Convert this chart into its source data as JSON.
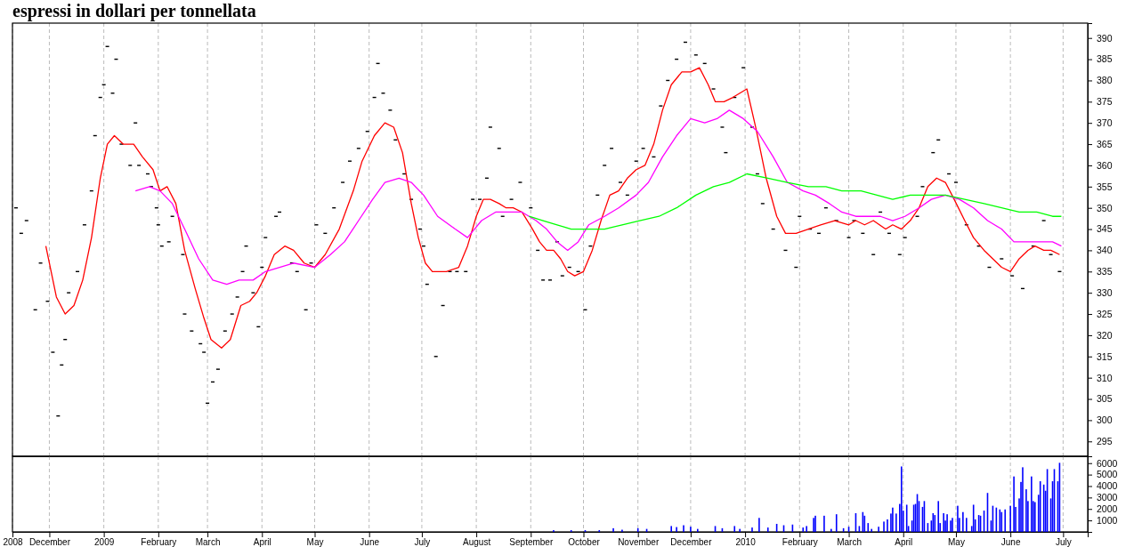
{
  "chart_data": [
    {
      "type": "scatter",
      "title": "espressi in dollari per tonnellata",
      "xlim": [
        "2008-11-10",
        "2010-07-15"
      ],
      "ylim": [
        291.5,
        393.5
      ],
      "xticks": [
        "2008-11-10",
        "2008-12-01",
        "2009-01-01",
        "2009-02-01",
        "2009-03-01",
        "2009-04-01",
        "2009-05-01",
        "2009-06-01",
        "2009-07-01",
        "2009-08-01",
        "2009-09-01",
        "2009-10-01",
        "2009-11-01",
        "2009-12-01",
        "2010-01-01",
        "2010-02-01",
        "2010-03-01",
        "2010-04-01",
        "2010-05-01",
        "2010-06-01",
        "2010-07-01"
      ],
      "yticks": [
        295,
        300,
        305,
        310,
        315,
        320,
        325,
        330,
        335,
        340,
        345,
        350,
        355,
        360,
        365,
        370,
        375,
        380,
        385,
        390
      ],
      "tick_labels": "y",
      "grid": "x",
      "series": [
        {
          "color": "#000000",
          "x": [
            "2008-11-12",
            "2008-11-15",
            "2008-11-18",
            "2008-11-23",
            "2008-11-26",
            "2008-11-30",
            "2008-12-03",
            "2008-12-06",
            "2008-12-08",
            "2008-12-10",
            "2008-12-12",
            "2008-12-17",
            "2008-12-21",
            "2008-12-25",
            "2008-12-27",
            "2008-12-30",
            "2009-01-01",
            "2009-01-03",
            "2009-01-06",
            "2009-01-08",
            "2009-01-11",
            "2009-01-16",
            "2009-01-19",
            "2009-01-21",
            "2009-01-26",
            "2009-01-28",
            "2009-01-31",
            "2009-02-01",
            "2009-02-03",
            "2009-02-07",
            "2009-02-09",
            "2009-02-15",
            "2009-02-16",
            "2009-02-20",
            "2009-02-25",
            "2009-02-27",
            "2009-03-01",
            "2009-03-04",
            "2009-03-07",
            "2009-03-11",
            "2009-03-15",
            "2009-03-18",
            "2009-03-21",
            "2009-03-23",
            "2009-03-27",
            "2009-03-30",
            "2009-04-01",
            "2009-04-03",
            "2009-04-09",
            "2009-04-11",
            "2009-04-18",
            "2009-04-21",
            "2009-04-26",
            "2009-04-29",
            "2009-05-02",
            "2009-05-07",
            "2009-05-12",
            "2009-05-17",
            "2009-05-21",
            "2009-05-26",
            "2009-05-31",
            "2009-06-04",
            "2009-06-06",
            "2009-06-09",
            "2009-06-13",
            "2009-06-16",
            "2009-06-21",
            "2009-06-25",
            "2009-06-30",
            "2009-07-02",
            "2009-07-04",
            "2009-07-09",
            "2009-07-13",
            "2009-07-17",
            "2009-07-21",
            "2009-07-26",
            "2009-07-30",
            "2009-08-03",
            "2009-08-07",
            "2009-08-09",
            "2009-08-14",
            "2009-08-16",
            "2009-08-21",
            "2009-08-26",
            "2009-09-01",
            "2009-09-05",
            "2009-09-08",
            "2009-09-12",
            "2009-09-16",
            "2009-09-19",
            "2009-09-23",
            "2009-09-28",
            "2009-10-02",
            "2009-10-05",
            "2009-10-09",
            "2009-10-13",
            "2009-10-17",
            "2009-10-22",
            "2009-10-26",
            "2009-10-31",
            "2009-11-04",
            "2009-11-10",
            "2009-11-14",
            "2009-11-18",
            "2009-11-23",
            "2009-11-28",
            "2009-12-04",
            "2009-12-09",
            "2009-12-14",
            "2009-12-19",
            "2009-12-21",
            "2009-12-26",
            "2009-12-31",
            "2010-01-05",
            "2010-01-08",
            "2010-01-11",
            "2010-01-17",
            "2010-01-24",
            "2010-01-30",
            "2010-02-01",
            "2010-02-07",
            "2010-02-12",
            "2010-02-16",
            "2010-02-22",
            "2010-03-01",
            "2010-03-04",
            "2010-03-09",
            "2010-03-15",
            "2010-03-19",
            "2010-03-24",
            "2010-03-30",
            "2010-04-02",
            "2010-04-09",
            "2010-04-12",
            "2010-04-18",
            "2010-04-21",
            "2010-04-27",
            "2010-05-01",
            "2010-05-07",
            "2010-05-14",
            "2010-05-20",
            "2010-05-27",
            "2010-06-02",
            "2010-06-08",
            "2010-06-14",
            "2010-06-20",
            "2010-06-24",
            "2010-06-29"
          ],
          "values": [
            350,
            344,
            347,
            326,
            337,
            328,
            316,
            301,
            313,
            319,
            330,
            335,
            346,
            354,
            367,
            376,
            379,
            388,
            377,
            385,
            365,
            360,
            370,
            360,
            358,
            355,
            350,
            346,
            341,
            342,
            348,
            339,
            325,
            321,
            318,
            316,
            304,
            309,
            312,
            321,
            325,
            329,
            335,
            341,
            330,
            322,
            336,
            343,
            348,
            349,
            337,
            335,
            326,
            337,
            346,
            344,
            350,
            356,
            361,
            364,
            368,
            376,
            384,
            377,
            373,
            366,
            358,
            352,
            345,
            341,
            332,
            315,
            327,
            335,
            335,
            335,
            352,
            352,
            357,
            369,
            364,
            348,
            352,
            356,
            350,
            340,
            333,
            333,
            342,
            334,
            336,
            335,
            326,
            341,
            353,
            360,
            364,
            356,
            353,
            361,
            364,
            362,
            374,
            380,
            385,
            389,
            386,
            384,
            378,
            369,
            363,
            376,
            383,
            369,
            358,
            351,
            345,
            340,
            336,
            348,
            345,
            344,
            350,
            347,
            343,
            347,
            344,
            339,
            349,
            344,
            339,
            343,
            348,
            355,
            363,
            366,
            358,
            356,
            346,
            341,
            336,
            338,
            334,
            331,
            341,
            347,
            339,
            335
          ]
        },
        {
          "type": "line",
          "color": "#ff0000",
          "x": [
            "2008-11-29",
            "2008-12-05",
            "2008-12-10",
            "2008-12-15",
            "2008-12-20",
            "2008-12-25",
            "2008-12-30",
            "2009-01-03",
            "2009-01-07",
            "2009-01-12",
            "2009-01-18",
            "2009-01-23",
            "2009-01-29",
            "2009-02-02",
            "2009-02-06",
            "2009-02-11",
            "2009-02-16",
            "2009-02-22",
            "2009-02-27",
            "2009-03-03",
            "2009-03-09",
            "2009-03-14",
            "2009-03-20",
            "2009-03-25",
            "2009-03-29",
            "2009-04-03",
            "2009-04-08",
            "2009-04-14",
            "2009-04-19",
            "2009-04-25",
            "2009-05-01",
            "2009-05-07",
            "2009-05-15",
            "2009-05-23",
            "2009-05-28",
            "2009-06-04",
            "2009-06-10",
            "2009-06-15",
            "2009-06-20",
            "2009-06-25",
            "2009-06-29",
            "2009-07-03",
            "2009-07-07",
            "2009-07-15",
            "2009-07-22",
            "2009-07-27",
            "2009-08-01",
            "2009-08-05",
            "2009-08-09",
            "2009-08-14",
            "2009-08-18",
            "2009-08-22",
            "2009-08-27",
            "2009-09-02",
            "2009-09-06",
            "2009-09-10",
            "2009-09-14",
            "2009-09-18",
            "2009-09-22",
            "2009-09-26",
            "2009-10-01",
            "2009-10-06",
            "2009-10-11",
            "2009-10-16",
            "2009-10-21",
            "2009-10-26",
            "2009-10-31",
            "2009-11-05",
            "2009-11-10",
            "2009-11-15",
            "2009-11-20",
            "2009-11-26",
            "2009-12-01",
            "2009-12-06",
            "2009-12-11",
            "2009-12-15",
            "2009-12-20",
            "2009-12-25",
            "2009-12-29",
            "2010-01-02",
            "2010-01-07",
            "2010-01-13",
            "2010-01-19",
            "2010-01-24",
            "2010-01-30",
            "2010-02-06",
            "2010-02-13",
            "2010-02-21",
            "2010-03-01",
            "2010-03-05",
            "2010-03-10",
            "2010-03-15",
            "2010-03-22",
            "2010-03-26",
            "2010-03-31",
            "2010-04-05",
            "2010-04-10",
            "2010-04-15",
            "2010-04-20",
            "2010-04-25",
            "2010-04-30",
            "2010-05-06",
            "2010-05-11",
            "2010-05-17",
            "2010-05-22",
            "2010-05-27",
            "2010-06-01",
            "2010-06-06",
            "2010-06-11",
            "2010-06-15",
            "2010-06-20",
            "2010-06-24",
            "2010-06-29"
          ],
          "values": [
            341,
            329,
            325,
            327,
            333,
            343,
            357,
            365,
            367,
            365,
            365,
            362,
            359,
            354,
            355,
            351,
            340,
            331,
            324,
            319,
            317,
            319,
            327,
            328,
            330,
            334,
            339,
            341,
            340,
            337,
            336,
            339,
            345,
            354,
            361,
            367,
            370,
            369,
            363,
            351,
            343,
            337,
            335,
            335,
            336,
            341,
            348,
            352,
            352,
            351,
            350,
            350,
            349,
            345,
            342,
            340,
            340,
            338,
            335,
            334,
            335,
            340,
            347,
            353,
            354,
            357,
            359,
            360,
            365,
            373,
            379,
            382,
            382,
            383,
            379,
            375,
            375,
            376,
            377,
            378,
            369,
            357,
            348,
            344,
            344,
            345,
            346,
            347,
            346,
            347,
            346,
            347,
            345,
            346,
            345,
            347,
            350,
            355,
            357,
            356,
            352,
            347,
            343,
            340,
            338,
            336,
            335,
            338,
            340,
            341,
            340,
            340,
            339
          ]
        },
        {
          "type": "line",
          "color": "#ff00ff",
          "x": [
            "2009-01-19",
            "2009-01-27",
            "2009-02-02",
            "2009-02-09",
            "2009-02-16",
            "2009-02-24",
            "2009-03-04",
            "2009-03-12",
            "2009-03-19",
            "2009-03-27",
            "2009-04-03",
            "2009-04-11",
            "2009-04-19",
            "2009-05-01",
            "2009-05-10",
            "2009-05-18",
            "2009-05-26",
            "2009-06-03",
            "2009-06-10",
            "2009-06-18",
            "2009-06-25",
            "2009-07-02",
            "2009-07-10",
            "2009-07-20",
            "2009-07-27",
            "2009-08-04",
            "2009-08-12",
            "2009-08-20",
            "2009-08-27",
            "2009-09-04",
            "2009-09-10",
            "2009-09-16",
            "2009-09-22",
            "2009-09-28",
            "2009-10-04",
            "2009-10-13",
            "2009-10-21",
            "2009-10-31",
            "2009-11-07",
            "2009-11-15",
            "2009-11-23",
            "2009-12-01",
            "2009-12-09",
            "2009-12-16",
            "2009-12-23",
            "2009-12-31",
            "2010-01-08",
            "2010-01-17",
            "2010-01-25",
            "2010-02-03",
            "2010-02-10",
            "2010-02-18",
            "2010-02-25",
            "2010-03-05",
            "2010-03-12",
            "2010-03-19",
            "2010-03-26",
            "2010-04-02",
            "2010-04-10",
            "2010-04-17",
            "2010-04-25",
            "2010-05-03",
            "2010-05-11",
            "2010-05-19",
            "2010-05-27",
            "2010-06-03",
            "2010-06-11",
            "2010-06-18",
            "2010-06-25",
            "2010-06-30"
          ],
          "values": [
            354,
            355,
            354,
            351,
            345,
            338,
            333,
            332,
            333,
            333,
            335,
            336,
            337,
            336,
            339,
            342,
            347,
            352,
            356,
            357,
            356,
            353,
            348,
            345,
            343,
            347,
            349,
            349,
            349,
            347,
            345,
            342,
            340,
            342,
            346,
            348,
            350,
            353,
            356,
            362,
            367,
            371,
            370,
            371,
            373,
            371,
            368,
            362,
            356,
            354,
            353,
            351,
            349,
            348,
            348,
            348,
            347,
            348,
            350,
            352,
            353,
            352,
            350,
            347,
            345,
            342,
            342,
            342,
            342,
            341
          ]
        },
        {
          "type": "line",
          "color": "#00ff00",
          "x": [
            "2009-08-31",
            "2009-09-08",
            "2009-09-16",
            "2009-09-24",
            "2009-10-03",
            "2009-10-13",
            "2009-10-23",
            "2009-11-02",
            "2009-11-13",
            "2009-11-23",
            "2009-12-04",
            "2009-12-14",
            "2009-12-23",
            "2010-01-02",
            "2010-01-14",
            "2010-01-25",
            "2010-02-06",
            "2010-02-16",
            "2010-02-25",
            "2010-03-08",
            "2010-03-17",
            "2010-03-26",
            "2010-04-05",
            "2010-04-15",
            "2010-04-25",
            "2010-05-06",
            "2010-05-17",
            "2010-05-27",
            "2010-06-06",
            "2010-06-16",
            "2010-06-25",
            "2010-06-30"
          ],
          "values": [
            348,
            347,
            346,
            345,
            345,
            345,
            346,
            347,
            348,
            350,
            353,
            355,
            356,
            358,
            357,
            356,
            355,
            355,
            354,
            354,
            353,
            352,
            353,
            353,
            353,
            352,
            351,
            350,
            349,
            349,
            348,
            348
          ]
        }
      ]
    },
    {
      "type": "bar",
      "xlim": [
        "2008-11-10",
        "2010-07-15"
      ],
      "ylim": [
        0,
        6600
      ],
      "xticks": [
        {
          "value": "2008-11-10",
          "label": "2008"
        },
        {
          "value": "2008-12-01",
          "label": "December"
        },
        {
          "value": "2009-01-01",
          "label": "2009"
        },
        {
          "value": "2009-02-01",
          "label": "February"
        },
        {
          "value": "2009-03-01",
          "label": "March"
        },
        {
          "value": "2009-04-01",
          "label": "April"
        },
        {
          "value": "2009-05-01",
          "label": "May"
        },
        {
          "value": "2009-06-01",
          "label": "June"
        },
        {
          "value": "2009-07-01",
          "label": "July"
        },
        {
          "value": "2009-08-01",
          "label": "August"
        },
        {
          "value": "2009-09-01",
          "label": "September"
        },
        {
          "value": "2009-10-01",
          "label": "October"
        },
        {
          "value": "2009-11-01",
          "label": "November"
        },
        {
          "value": "2009-12-01",
          "label": "December"
        },
        {
          "value": "2010-01-01",
          "label": "2010"
        },
        {
          "value": "2010-02-01",
          "label": "February"
        },
        {
          "value": "2010-03-01",
          "label": "March"
        },
        {
          "value": "2010-04-01",
          "label": "April"
        },
        {
          "value": "2010-05-01",
          "label": "May"
        },
        {
          "value": "2010-06-01",
          "label": "June"
        },
        {
          "value": "2010-07-01",
          "label": "July"
        }
      ],
      "yticks": [
        1000,
        2000,
        3000,
        4000,
        5000,
        6000
      ],
      "grid": "x",
      "series": [
        {
          "color": "#0000ff",
          "x": [
            "2009-09-14",
            "2009-09-24",
            "2009-10-02",
            "2009-10-10",
            "2009-10-18",
            "2009-10-23",
            "2009-11-01",
            "2009-11-06",
            "2009-11-20",
            "2009-11-23",
            "2009-11-27",
            "2009-12-01",
            "2009-12-05",
            "2009-12-15",
            "2009-12-19",
            "2009-12-26",
            "2009-12-29",
            "2010-01-05",
            "2010-01-09",
            "2010-01-14",
            "2010-01-19",
            "2010-01-23",
            "2010-01-28",
            "2010-02-03",
            "2010-02-05",
            "2010-02-09",
            "2010-02-10",
            "2010-02-15",
            "2010-02-19",
            "2010-02-22",
            "2010-02-26",
            "2010-03-01",
            "2010-03-05",
            "2010-03-07",
            "2010-03-09",
            "2010-03-10",
            "2010-03-12",
            "2010-03-14",
            "2010-03-18",
            "2010-03-21",
            "2010-03-23",
            "2010-03-25",
            "2010-03-26",
            "2010-03-28",
            "2010-03-30",
            "2010-03-31",
            "2010-04-01",
            "2010-04-03",
            "2010-04-04",
            "2010-04-06",
            "2010-04-07",
            "2010-04-08",
            "2010-04-09",
            "2010-04-10",
            "2010-04-12",
            "2010-04-13",
            "2010-04-15",
            "2010-04-17",
            "2010-04-18",
            "2010-04-19",
            "2010-04-21",
            "2010-04-22",
            "2010-04-24",
            "2010-04-25",
            "2010-04-26",
            "2010-04-28",
            "2010-04-29",
            "2010-05-02",
            "2010-05-03",
            "2010-05-05",
            "2010-05-07",
            "2010-05-10",
            "2010-05-11",
            "2010-05-12",
            "2010-05-14",
            "2010-05-15",
            "2010-05-17",
            "2010-05-19",
            "2010-05-21",
            "2010-05-22",
            "2010-05-24",
            "2010-05-26",
            "2010-05-27",
            "2010-05-29",
            "2010-06-01",
            "2010-06-03",
            "2010-06-04",
            "2010-06-06",
            "2010-06-07",
            "2010-06-08",
            "2010-06-10",
            "2010-06-11",
            "2010-06-13",
            "2010-06-14",
            "2010-06-15",
            "2010-06-17",
            "2010-06-18",
            "2010-06-20",
            "2010-06-21",
            "2010-06-22",
            "2010-06-24",
            "2010-06-25",
            "2010-06-26",
            "2010-06-28",
            "2010-06-29"
          ],
          "values": [
            150,
            150,
            150,
            150,
            320,
            190,
            320,
            260,
            510,
            420,
            580,
            450,
            260,
            510,
            320,
            510,
            260,
            380,
            1220,
            380,
            700,
            580,
            640,
            380,
            510,
            1220,
            1410,
            1410,
            260,
            1540,
            320,
            450,
            1630,
            510,
            1730,
            1410,
            770,
            260,
            450,
            900,
            1090,
            1600,
            2120,
            1600,
            2440,
            5710,
            1860,
            2370,
            510,
            990,
            2370,
            2440,
            3300,
            2690,
            2180,
            2690,
            770,
            990,
            1630,
            1470,
            2690,
            770,
            1630,
            990,
            1540,
            990,
            1220,
            2280,
            1220,
            1730,
            1220,
            510,
            2370,
            1090,
            1470,
            1410,
            1860,
            3400,
            990,
            2280,
            2120,
            1960,
            1730,
            1960,
            2280,
            4840,
            2180,
            2920,
            4360,
            5640,
            3720,
            2690,
            4840,
            2690,
            2600,
            3240,
            4420,
            4130,
            3590,
            5480,
            2920,
            4420,
            5480,
            4420,
            6030
          ]
        }
      ]
    }
  ]
}
